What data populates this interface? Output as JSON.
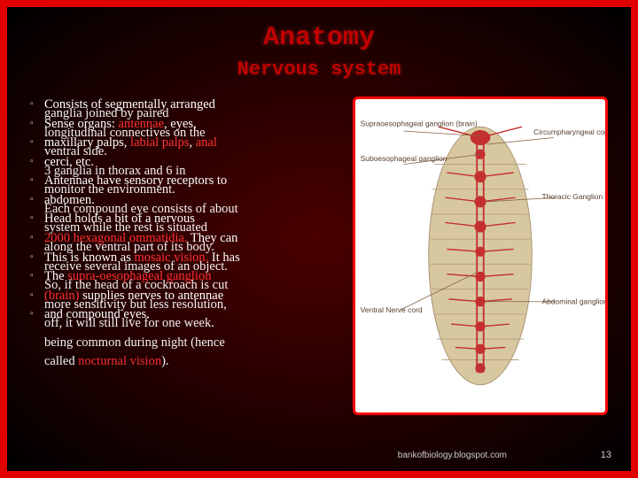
{
  "title": "Anatomy",
  "subtitle": "Nervous system",
  "colors": {
    "outer_border": "#e00000",
    "bg_center": "#4a0000",
    "bg_edge": "#000000",
    "heading": "#c00000",
    "body_text": "#ffffff",
    "highlight": "#ff3030",
    "fig_border": "#ff0000",
    "fig_bg": "#ffffff",
    "fig_body": "#d8c8a0",
    "fig_nerve": "#c43030",
    "fig_label": "#5a4030",
    "footer": "#cccccc"
  },
  "layers": [
    {
      "bullets": [
        {
          "text": "Consists of segmentally arranged"
        },
        {
          "text": "Sense organs: antennae, eyes,",
          "red_phrases": [
            "antennae"
          ]
        },
        {
          "text": "maxillary palps, labial palps, anal",
          "red_phrases": [
            "labial palps",
            "anal"
          ]
        },
        {
          "text": "cerci, etc."
        },
        {
          "text": "Antennae have sensory receptors to"
        },
        {
          "text": "abdomen."
        },
        {
          "text": "Head holds a bit of a nervous"
        },
        {
          "text": "2000 hexagonal ommatidia. They can",
          "red_phrases": [
            "2000 hexagonal ommatidia."
          ]
        },
        {
          "text": "This is known as mosaic vision. It has",
          "red_phrases": [
            "mosaic vision."
          ]
        },
        {
          "text": "The supra-oesophageal ganglion",
          "red_phrases": [
            "supra-oesophageal ganglion"
          ]
        },
        {
          "text": "(brain) supplies nerves to antennae",
          "red_phrases": [
            "(brain)"
          ]
        },
        {
          "text": "and compound eyes."
        }
      ]
    },
    {
      "bullets": [
        {
          "text": "ganglia joined by paired"
        },
        {
          "text": "longitudinal connectives on the"
        },
        {
          "text": "ventral side."
        },
        {
          "text": "3 ganglia in thorax and 6 in"
        },
        {
          "text": "monitor the environment."
        },
        {
          "text": "Each compound eye consists of about"
        },
        {
          "text": "system while the rest is situated"
        },
        {
          "text": "along the ventral part of its body.",
          "offset": true
        },
        {
          "text": "receive several images of an object."
        },
        {
          "text": "So, if the head of a cockroach is cut"
        },
        {
          "text": "more sensitivity but less resolution,"
        },
        {
          "text": "off, it will still live for one week."
        },
        {
          "text": "being common during night (hence"
        },
        {
          "text": "called nocturnal vision).",
          "red_phrases": [
            "nocturnal vision"
          ]
        }
      ]
    }
  ],
  "figure": {
    "labels_left": [
      "Supraoesophageal ganglion (brain)",
      "Suboesophageal ganglion",
      "Ventral Nerve cord"
    ],
    "labels_right": [
      "Circumpharyngeal commissure",
      "Thoracic Ganglion",
      "Abdominal ganglion"
    ]
  },
  "footer": "bankofbiology.blogspot.com",
  "page_number": "13"
}
